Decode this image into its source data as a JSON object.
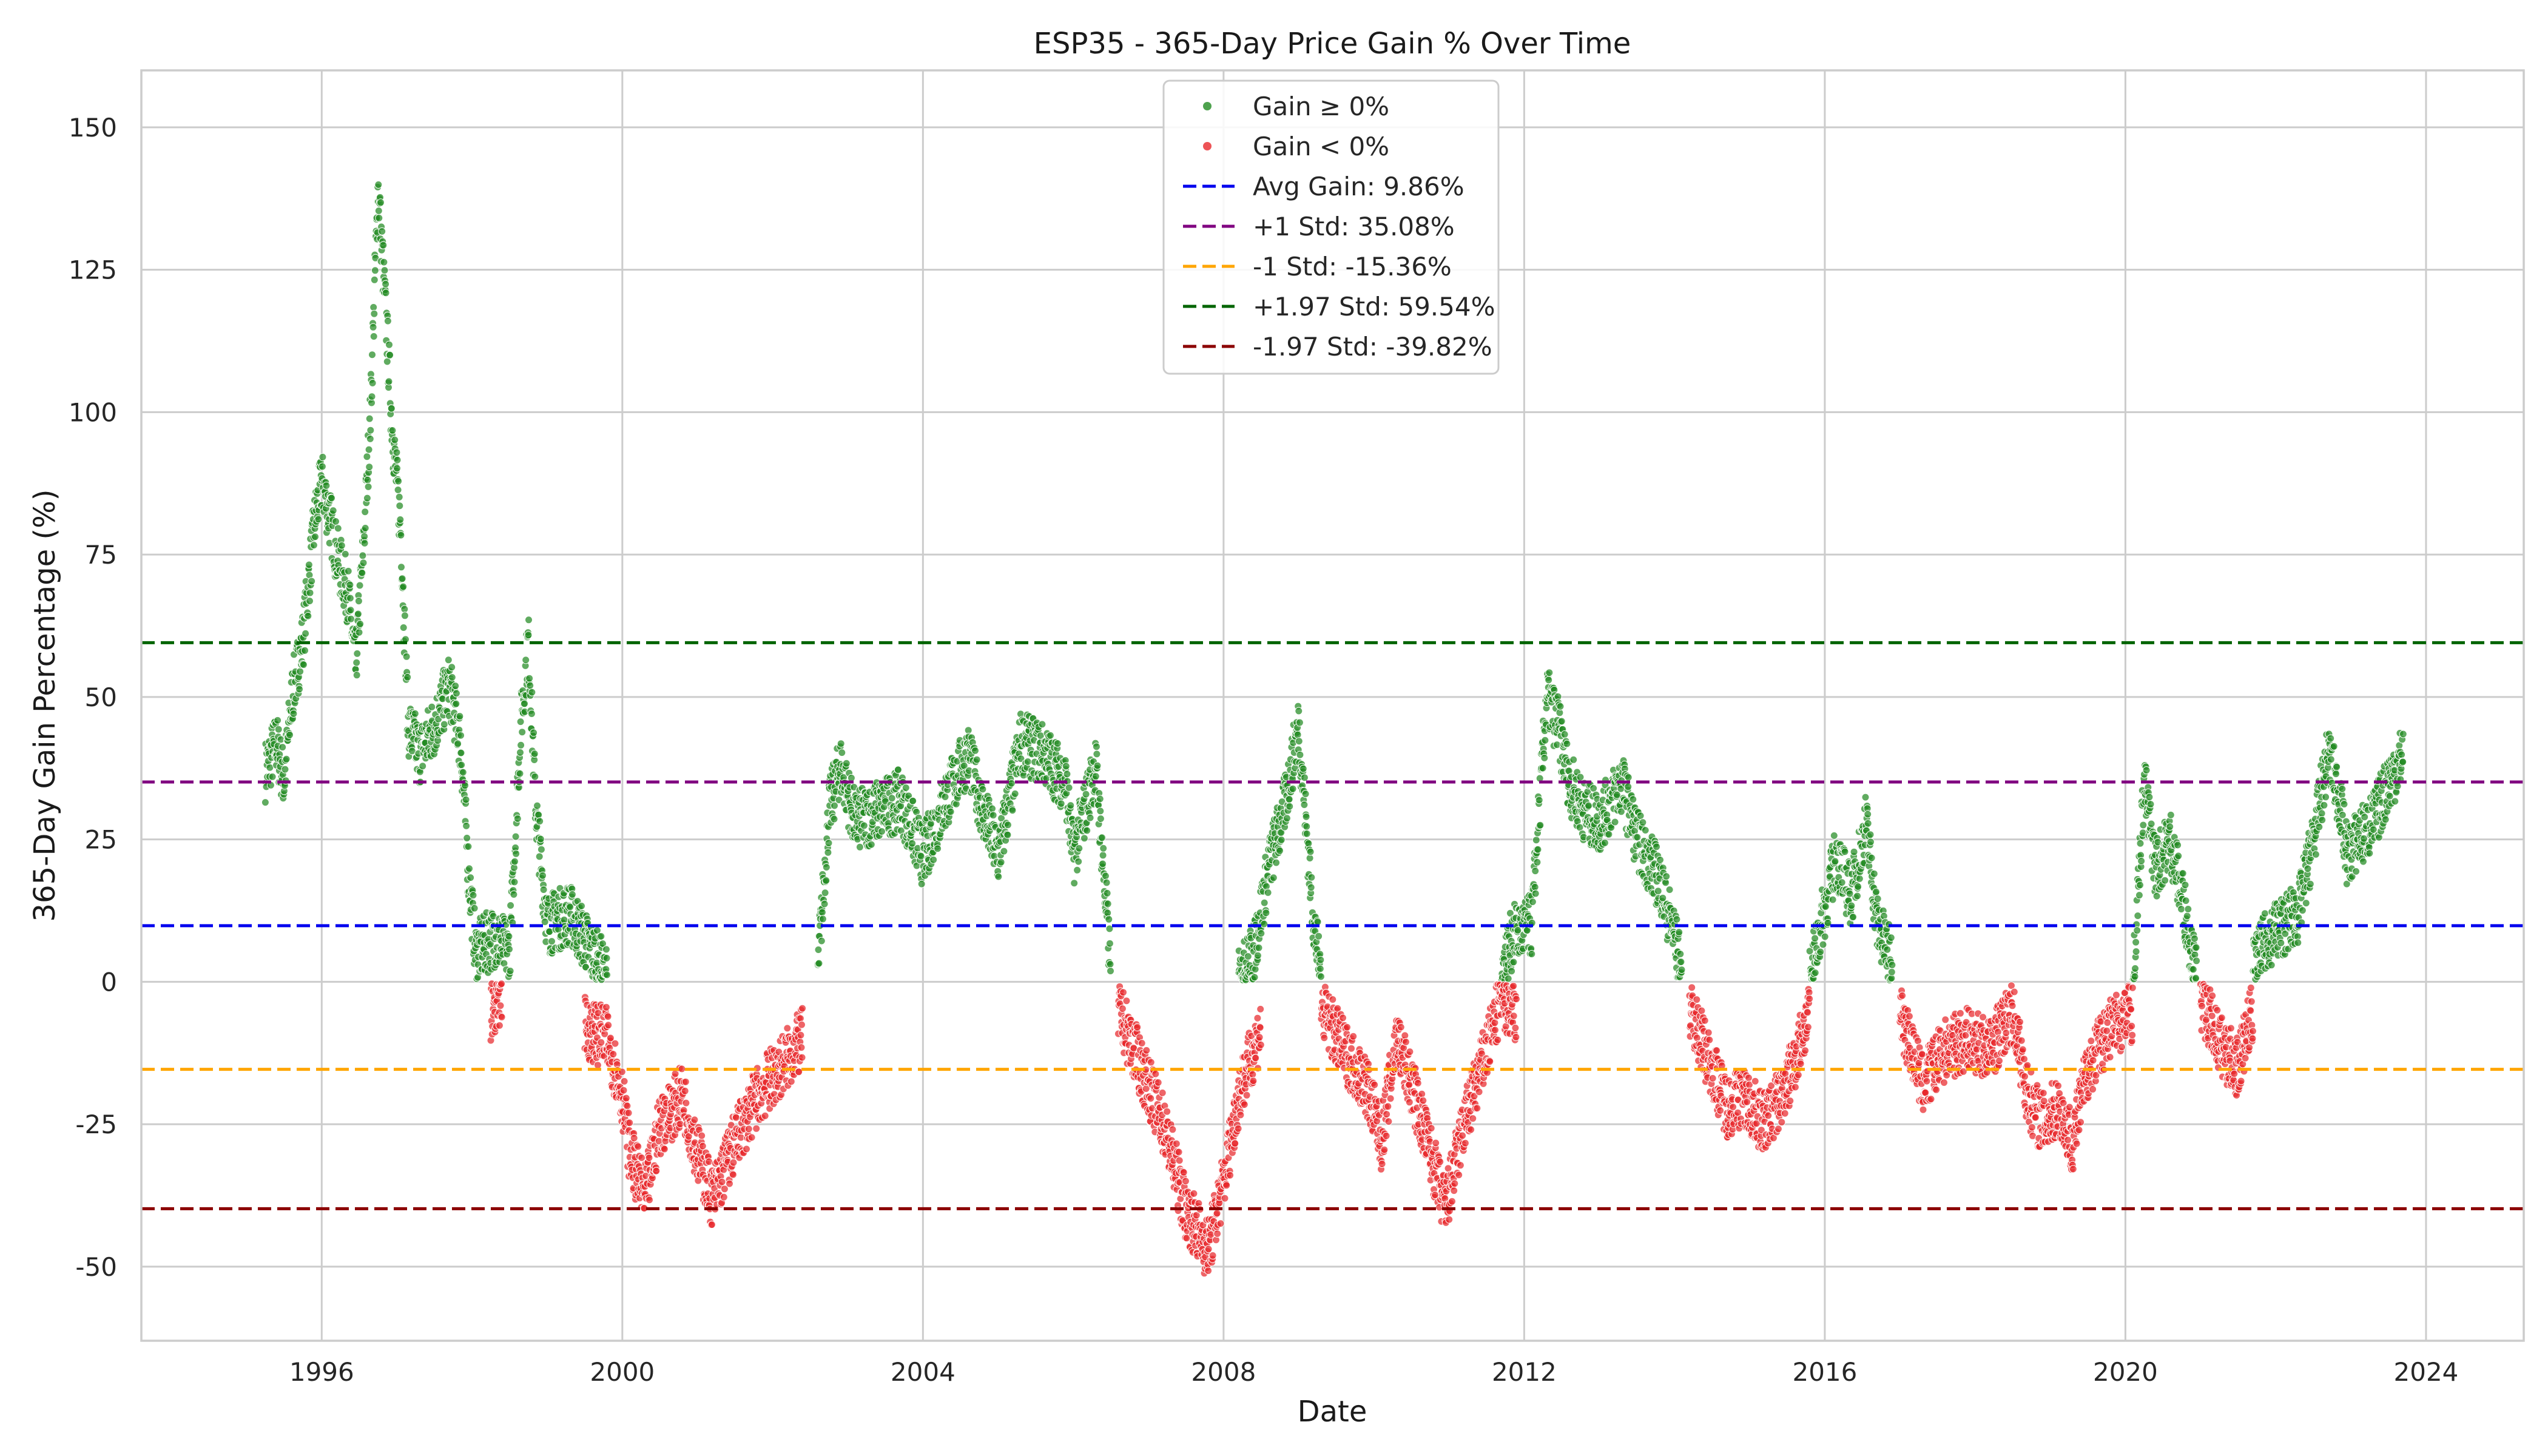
{
  "chart_data": {
    "type": "scatter",
    "title": "ESP35 - 365-Day Price Gain % Over Time",
    "xlabel": "Date",
    "ylabel": "365-Day Gain Percentage (%)",
    "xlim": [
      1993.6,
      2025.3
    ],
    "ylim": [
      -63,
      160
    ],
    "x_ticks": [
      "1996",
      "2000",
      "2004",
      "2008",
      "2012",
      "2016",
      "2020",
      "2024"
    ],
    "y_ticks": [
      "150",
      "125",
      "100",
      "75",
      "50",
      "25",
      "0",
      "-25",
      "-50"
    ],
    "grid": true,
    "legend_position": "top-center",
    "series": [
      {
        "name": "Gain ≥ 0%",
        "color": "#228b22",
        "trend": [
          [
            1995.25,
            37
          ],
          [
            1995.4,
            42
          ],
          [
            1995.5,
            35
          ],
          [
            1995.6,
            50
          ],
          [
            1995.75,
            60
          ],
          [
            1995.9,
            80
          ],
          [
            1996.0,
            88
          ],
          [
            1996.1,
            82
          ],
          [
            1996.2,
            75
          ],
          [
            1996.35,
            68
          ],
          [
            1996.45,
            55
          ],
          [
            1996.55,
            75
          ],
          [
            1996.65,
            100
          ],
          [
            1996.75,
            140
          ],
          [
            1996.85,
            118
          ],
          [
            1996.95,
            95
          ],
          [
            1997.05,
            80
          ],
          [
            1997.15,
            45
          ],
          [
            1997.3,
            40
          ],
          [
            1997.5,
            45
          ],
          [
            1997.7,
            52
          ],
          [
            1997.85,
            42
          ],
          [
            1997.95,
            20
          ],
          [
            1998.05,
            5
          ],
          [
            1998.3,
            8
          ],
          [
            1998.5,
            5
          ],
          [
            1998.65,
            45
          ],
          [
            1998.75,
            60
          ],
          [
            1998.85,
            30
          ],
          [
            1999.0,
            10
          ],
          [
            1999.3,
            12
          ],
          [
            1999.6,
            5
          ],
          [
            1999.8,
            1
          ],
          [
            2002.6,
            2
          ],
          [
            2002.75,
            30
          ],
          [
            2002.9,
            38
          ],
          [
            2003.1,
            28
          ],
          [
            2003.4,
            30
          ],
          [
            2003.7,
            32
          ],
          [
            2004.0,
            22
          ],
          [
            2004.3,
            32
          ],
          [
            2004.6,
            40
          ],
          [
            2004.8,
            30
          ],
          [
            2005.0,
            22
          ],
          [
            2005.3,
            42
          ],
          [
            2005.6,
            40
          ],
          [
            2005.9,
            35
          ],
          [
            2006.0,
            22
          ],
          [
            2006.3,
            38
          ],
          [
            2006.5,
            2
          ],
          [
            2008.2,
            0
          ],
          [
            2008.4,
            5
          ],
          [
            2008.6,
            20
          ],
          [
            2008.8,
            30
          ],
          [
            2009.0,
            45
          ],
          [
            2009.2,
            10
          ],
          [
            2009.3,
            1
          ],
          [
            2011.7,
            2
          ],
          [
            2011.85,
            8
          ],
          [
            2012.1,
            10
          ],
          [
            2012.3,
            50
          ],
          [
            2012.45,
            45
          ],
          [
            2012.6,
            35
          ],
          [
            2012.8,
            30
          ],
          [
            2013.0,
            28
          ],
          [
            2013.3,
            35
          ],
          [
            2013.5,
            25
          ],
          [
            2013.8,
            18
          ],
          [
            2014.0,
            8
          ],
          [
            2014.1,
            1
          ],
          [
            2015.8,
            0
          ],
          [
            2015.95,
            10
          ],
          [
            2016.15,
            22
          ],
          [
            2016.35,
            15
          ],
          [
            2016.55,
            28
          ],
          [
            2016.7,
            10
          ],
          [
            2016.9,
            3
          ],
          [
            2018.6,
            3
          ],
          [
            2020.1,
            0
          ],
          [
            2020.25,
            35
          ],
          [
            2020.4,
            20
          ],
          [
            2020.6,
            25
          ],
          [
            2020.8,
            12
          ],
          [
            2020.95,
            1
          ],
          [
            2021.7,
            2
          ],
          [
            2021.9,
            8
          ],
          [
            2022.1,
            10
          ],
          [
            2022.3,
            12
          ],
          [
            2022.5,
            25
          ],
          [
            2022.7,
            40
          ],
          [
            2022.85,
            32
          ],
          [
            2022.95,
            22
          ],
          [
            2023.1,
            25
          ],
          [
            2023.3,
            28
          ],
          [
            2023.5,
            35
          ],
          [
            2023.7,
            40
          ]
        ]
      },
      {
        "name": "Gain < 0%",
        "color": "#e8282c",
        "trend": [
          [
            1998.25,
            -5
          ],
          [
            1998.4,
            -3
          ],
          [
            1999.5,
            -8
          ],
          [
            1999.8,
            -10
          ],
          [
            2000.0,
            -20
          ],
          [
            2000.1,
            -30
          ],
          [
            2000.3,
            -38
          ],
          [
            2000.5,
            -25
          ],
          [
            2000.8,
            -20
          ],
          [
            2001.0,
            -30
          ],
          [
            2001.2,
            -38
          ],
          [
            2001.5,
            -28
          ],
          [
            2001.8,
            -20
          ],
          [
            2002.1,
            -15
          ],
          [
            2002.4,
            -10
          ],
          [
            2006.6,
            -5
          ],
          [
            2006.9,
            -15
          ],
          [
            2007.2,
            -25
          ],
          [
            2007.5,
            -40
          ],
          [
            2007.8,
            -47
          ],
          [
            2008.0,
            -35
          ],
          [
            2008.2,
            -20
          ],
          [
            2008.5,
            -8
          ],
          [
            2009.3,
            -5
          ],
          [
            2009.6,
            -12
          ],
          [
            2009.9,
            -18
          ],
          [
            2010.1,
            -28
          ],
          [
            2010.3,
            -10
          ],
          [
            2010.5,
            -18
          ],
          [
            2010.75,
            -30
          ],
          [
            2010.95,
            -40
          ],
          [
            2011.2,
            -25
          ],
          [
            2011.5,
            -12
          ],
          [
            2011.7,
            -3
          ],
          [
            2011.9,
            -5
          ],
          [
            2014.2,
            -5
          ],
          [
            2014.5,
            -15
          ],
          [
            2014.7,
            -22
          ],
          [
            2014.9,
            -20
          ],
          [
            2015.2,
            -25
          ],
          [
            2015.5,
            -18
          ],
          [
            2015.8,
            -5
          ],
          [
            2017.0,
            -5
          ],
          [
            2017.3,
            -18
          ],
          [
            2017.6,
            -12
          ],
          [
            2017.9,
            -10
          ],
          [
            2018.2,
            -12
          ],
          [
            2018.5,
            -5
          ],
          [
            2018.7,
            -20
          ],
          [
            2018.9,
            -25
          ],
          [
            2019.1,
            -22
          ],
          [
            2019.3,
            -28
          ],
          [
            2019.5,
            -15
          ],
          [
            2019.8,
            -8
          ],
          [
            2020.1,
            -5
          ],
          [
            2021.0,
            -3
          ],
          [
            2021.3,
            -12
          ],
          [
            2021.5,
            -15
          ],
          [
            2021.7,
            -5
          ]
        ]
      }
    ],
    "reference_lines": [
      {
        "label": "Avg Gain: 9.86%",
        "value": 9.86,
        "color": "#0000ee"
      },
      {
        "label": "+1 Std: 35.08%",
        "value": 35.08,
        "color": "#800080"
      },
      {
        "label": "-1 Std: -15.36%",
        "value": -15.36,
        "color": "#ffa500"
      },
      {
        "label": "+1.97 Std: 59.54%",
        "value": 59.54,
        "color": "#006400"
      },
      {
        "label": "-1.97 Std: -39.82%",
        "value": -39.82,
        "color": "#8b0000"
      }
    ]
  }
}
